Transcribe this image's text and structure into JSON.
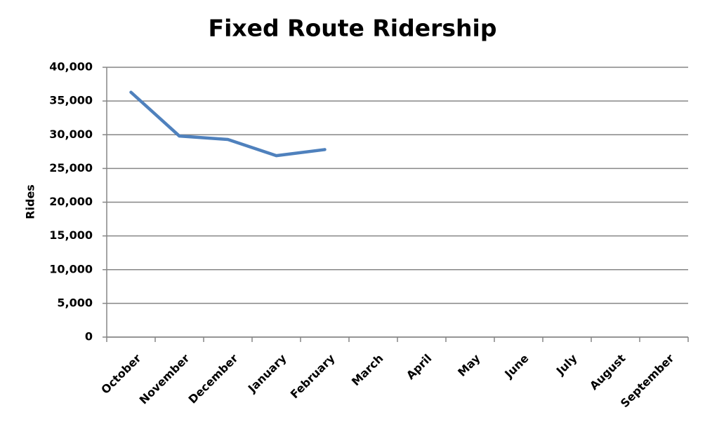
{
  "chart_data": {
    "type": "line",
    "title": "Fixed Route Ridership",
    "y_label": "Rides",
    "categories": [
      "October",
      "November",
      "December",
      "January",
      "February",
      "March",
      "April",
      "May",
      "June",
      "July",
      "August",
      "September"
    ],
    "values": [
      36300,
      29800,
      29300,
      26900,
      27800,
      null,
      null,
      null,
      null,
      null,
      null,
      null
    ],
    "color": "#4f81bd",
    "ylim": [
      0,
      40000
    ],
    "yticks": [
      0,
      {
        "value": 5000,
        "label": "5,000"
      },
      {
        "value": 10000,
        "label": "10,000"
      },
      {
        "value": 15000,
        "label": "15,000"
      },
      {
        "value": 20000,
        "label": "20,000"
      },
      {
        "value": 25000,
        "label": "25,000"
      },
      {
        "value": 30000,
        "label": "30,000"
      },
      {
        "value": 35000,
        "label": "35,000"
      },
      {
        "value": 40000,
        "label": "40,000"
      }
    ],
    "grid": true
  }
}
